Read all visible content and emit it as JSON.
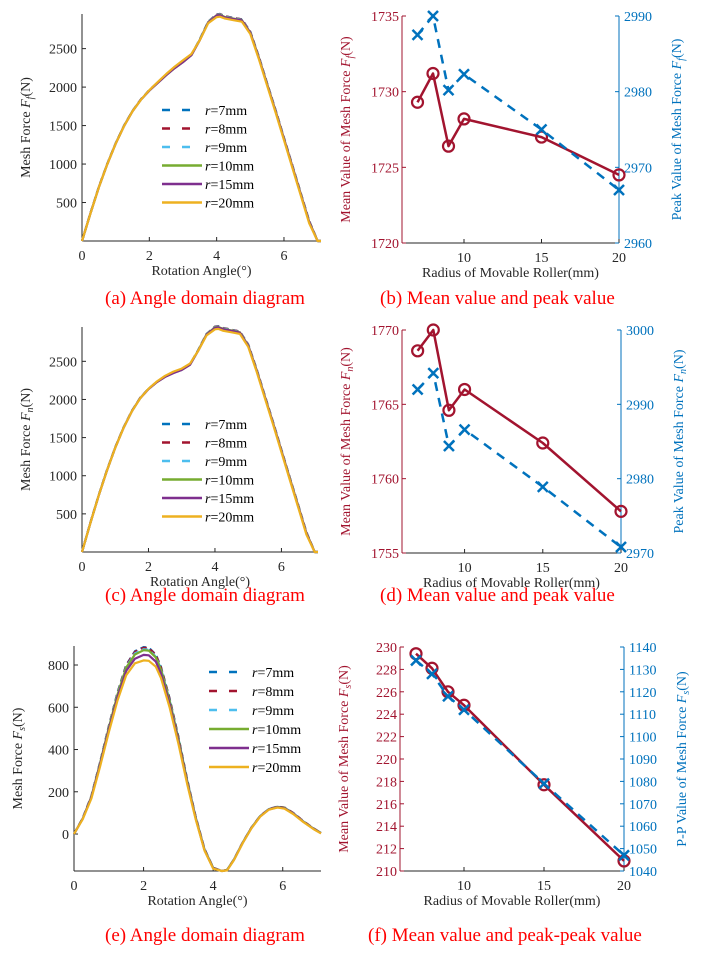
{
  "colors": {
    "r7": "#0072bd",
    "r8": "#a2142f",
    "r9": "#4dbeee",
    "r10": "#77ac30",
    "r15": "#7e2f8e",
    "r20": "#edb120",
    "mean": "#a2142f",
    "peak": "#0072bd",
    "caption": "#ff0000"
  },
  "legend": [
    {
      "key": "r7",
      "label": "r=7mm",
      "style": "dashed"
    },
    {
      "key": "r8",
      "label": "r=8mm",
      "style": "dashed"
    },
    {
      "key": "r9",
      "label": "r=9mm",
      "style": "dashed"
    },
    {
      "key": "r10",
      "label": "r=10mm",
      "style": "solid"
    },
    {
      "key": "r15",
      "label": "r=15mm",
      "style": "solid"
    },
    {
      "key": "r20",
      "label": "r=20mm",
      "style": "solid"
    }
  ],
  "captions": {
    "a": "(a) Angle domain diagram",
    "b": "(b) Mean value and peak value",
    "c": "(c) Angle domain diagram",
    "d": "(d) Mean value and peak value",
    "e": "(e) Angle domain diagram",
    "f": "(f) Mean value and peak-peak value"
  },
  "chart_data": [
    {
      "id": "a",
      "type": "line",
      "title": "",
      "xlabel": "Rotation Angle(°)",
      "ylabel": "Mesh Force F_f(N)",
      "xlim": [
        0,
        7.1
      ],
      "ylim": [
        0,
        2950
      ],
      "xticks": [
        0,
        2,
        4,
        6
      ],
      "yticks": [
        500,
        1000,
        1500,
        2000,
        2500
      ],
      "legend_position": "center",
      "x": [
        0,
        0.25,
        0.5,
        0.75,
        1.0,
        1.25,
        1.5,
        1.75,
        2.0,
        2.25,
        2.5,
        2.75,
        3.0,
        3.25,
        3.5,
        3.75,
        4.0,
        4.1,
        4.25,
        4.5,
        4.75,
        5.0,
        5.25,
        5.5,
        5.75,
        6.0,
        6.25,
        6.5,
        6.75,
        7.0,
        7.1
      ],
      "series": [
        {
          "name": "r=7mm",
          "key": "r7",
          "values": [
            0,
            360,
            700,
            1000,
            1270,
            1500,
            1690,
            1840,
            1960,
            2060,
            2160,
            2250,
            2330,
            2420,
            2620,
            2850,
            2945,
            2950,
            2920,
            2900,
            2880,
            2720,
            2400,
            2050,
            1700,
            1340,
            980,
            620,
            260,
            -40,
            -60
          ]
        },
        {
          "name": "r=8mm",
          "key": "r8",
          "values": [
            0,
            360,
            700,
            1000,
            1270,
            1500,
            1690,
            1840,
            1960,
            2060,
            2160,
            2250,
            2330,
            2420,
            2620,
            2850,
            2945,
            2950,
            2920,
            2900,
            2880,
            2720,
            2400,
            2050,
            1700,
            1340,
            980,
            620,
            260,
            -40,
            -60
          ]
        },
        {
          "name": "r=9mm",
          "key": "r9",
          "values": [
            0,
            358,
            698,
            998,
            1268,
            1498,
            1688,
            1838,
            1958,
            2058,
            2158,
            2248,
            2328,
            2418,
            2618,
            2848,
            2940,
            2945,
            2915,
            2895,
            2875,
            2715,
            2395,
            2045,
            1695,
            1335,
            975,
            615,
            255,
            -45,
            -60
          ]
        },
        {
          "name": "r=10mm",
          "key": "r10",
          "values": [
            0,
            358,
            698,
            998,
            1268,
            1498,
            1688,
            1838,
            1955,
            2055,
            2155,
            2245,
            2325,
            2415,
            2615,
            2845,
            2935,
            2940,
            2910,
            2890,
            2870,
            2710,
            2390,
            2040,
            1690,
            1330,
            970,
            610,
            250,
            -45,
            -60
          ]
        },
        {
          "name": "r=15mm",
          "key": "r15",
          "values": [
            0,
            356,
            696,
            996,
            1266,
            1496,
            1686,
            1836,
            1955,
            2055,
            2155,
            2245,
            2325,
            2415,
            2610,
            2840,
            2930,
            2935,
            2905,
            2885,
            2865,
            2705,
            2385,
            2035,
            1685,
            1325,
            965,
            605,
            245,
            -45,
            -60
          ]
        },
        {
          "name": "r=20mm",
          "key": "r20",
          "values": [
            0,
            355,
            695,
            995,
            1265,
            1495,
            1685,
            1835,
            1960,
            2065,
            2170,
            2265,
            2350,
            2430,
            2610,
            2830,
            2910,
            2915,
            2890,
            2870,
            2850,
            2690,
            2370,
            2020,
            1670,
            1310,
            950,
            590,
            230,
            -50,
            -60
          ]
        }
      ]
    },
    {
      "id": "b",
      "type": "line",
      "title": "",
      "xlabel": "Radius of Movable Roller(mm)",
      "ylabel_left": "Mean Value of Mesh Force F_f(N)",
      "ylabel_right": "Peak Value of Mesh Force F_f(N)",
      "xlim": [
        6,
        20
      ],
      "xticks": [
        10,
        15,
        20
      ],
      "ylim_left": [
        1720,
        1735
      ],
      "yticks_left": [
        1720,
        1725,
        1730,
        1735
      ],
      "ylim_right": [
        2960,
        2990
      ],
      "yticks_right": [
        2960,
        2970,
        2980,
        2990
      ],
      "x": [
        7,
        8,
        9,
        10,
        15,
        20
      ],
      "series": [
        {
          "name": "Mean value",
          "axis": "left",
          "marker": "o",
          "style": "solid",
          "key": "mean",
          "values": [
            1729.3,
            1731.2,
            1726.4,
            1728.2,
            1727.0,
            1724.5
          ]
        },
        {
          "name": "Peak value",
          "axis": "right",
          "marker": "x",
          "style": "dashed",
          "key": "peak",
          "values": [
            2987.5,
            2990.0,
            2980.2,
            2982.3,
            2975.0,
            2967.0
          ]
        }
      ]
    },
    {
      "id": "c",
      "type": "line",
      "title": "",
      "xlabel": "Rotation Angle(°)",
      "ylabel": "Mesh Force F_n(N)",
      "xlim": [
        0,
        7.1
      ],
      "ylim": [
        0,
        2950
      ],
      "xticks": [
        0,
        2,
        4,
        6
      ],
      "yticks": [
        500,
        1000,
        1500,
        2000,
        2500
      ],
      "legend_position": "center",
      "x": [
        0,
        0.25,
        0.5,
        0.75,
        1.0,
        1.25,
        1.5,
        1.75,
        2.0,
        2.25,
        2.5,
        2.75,
        3.0,
        3.25,
        3.5,
        3.75,
        4.0,
        4.1,
        4.25,
        4.5,
        4.75,
        5.0,
        5.25,
        5.5,
        5.75,
        6.0,
        6.25,
        6.5,
        6.75,
        7.0,
        7.1
      ],
      "series": [
        {
          "name": "r=7mm",
          "key": "r7",
          "values": [
            0,
            380,
            740,
            1070,
            1370,
            1630,
            1850,
            2020,
            2140,
            2230,
            2300,
            2350,
            2390,
            2460,
            2650,
            2860,
            2955,
            2960,
            2935,
            2915,
            2890,
            2720,
            2400,
            2050,
            1700,
            1340,
            980,
            620,
            260,
            -40,
            -60
          ]
        },
        {
          "name": "r=8mm",
          "key": "r8",
          "values": [
            0,
            380,
            740,
            1070,
            1370,
            1630,
            1850,
            2020,
            2140,
            2230,
            2300,
            2350,
            2390,
            2460,
            2650,
            2860,
            2955,
            2960,
            2935,
            2915,
            2890,
            2720,
            2400,
            2050,
            1700,
            1340,
            980,
            620,
            260,
            -40,
            -60
          ]
        },
        {
          "name": "r=9mm",
          "key": "r9",
          "values": [
            0,
            378,
            738,
            1068,
            1368,
            1628,
            1848,
            2018,
            2138,
            2228,
            2298,
            2348,
            2388,
            2458,
            2648,
            2858,
            2950,
            2955,
            2930,
            2910,
            2885,
            2715,
            2395,
            2045,
            1695,
            1335,
            975,
            615,
            255,
            -45,
            -60
          ]
        },
        {
          "name": "r=10mm",
          "key": "r10",
          "values": [
            0,
            378,
            738,
            1068,
            1368,
            1628,
            1848,
            2018,
            2138,
            2228,
            2298,
            2348,
            2388,
            2456,
            2645,
            2855,
            2945,
            2950,
            2925,
            2905,
            2880,
            2710,
            2390,
            2040,
            1690,
            1330,
            970,
            610,
            250,
            -45,
            -60
          ]
        },
        {
          "name": "r=15mm",
          "key": "r15",
          "values": [
            0,
            376,
            736,
            1066,
            1366,
            1626,
            1846,
            2016,
            2136,
            2226,
            2296,
            2346,
            2386,
            2454,
            2640,
            2850,
            2940,
            2945,
            2920,
            2900,
            2875,
            2705,
            2385,
            2035,
            1685,
            1325,
            965,
            605,
            245,
            -45,
            -60
          ]
        },
        {
          "name": "r=20mm",
          "key": "r20",
          "values": [
            0,
            375,
            735,
            1065,
            1365,
            1625,
            1845,
            2015,
            2140,
            2235,
            2310,
            2365,
            2405,
            2470,
            2640,
            2840,
            2920,
            2925,
            2900,
            2880,
            2860,
            2690,
            2370,
            2020,
            1670,
            1310,
            950,
            590,
            230,
            -50,
            -60
          ]
        }
      ]
    },
    {
      "id": "d",
      "type": "line",
      "title": "",
      "xlabel": "Radius of Movable Roller(mm)",
      "ylabel_left": "Mean Value of Mesh Force F_n(N)",
      "ylabel_right": "Peak Value of Mesh Force F_n(N)",
      "xlim": [
        6,
        20
      ],
      "xticks": [
        10,
        15,
        20
      ],
      "ylim_left": [
        1755,
        1770
      ],
      "yticks_left": [
        1755,
        1760,
        1765,
        1770
      ],
      "ylim_right": [
        2970,
        3000
      ],
      "yticks_right": [
        2970,
        2980,
        2990,
        3000
      ],
      "x": [
        7,
        8,
        9,
        10,
        15,
        20
      ],
      "series": [
        {
          "name": "Mean value",
          "axis": "left",
          "marker": "o",
          "style": "solid",
          "key": "mean",
          "values": [
            1768.6,
            1770.0,
            1764.6,
            1766.0,
            1762.4,
            1757.8
          ]
        },
        {
          "name": "Peak value",
          "axis": "right",
          "marker": "x",
          "style": "dashed",
          "key": "peak",
          "values": [
            2992.0,
            2994.2,
            2984.4,
            2986.6,
            2978.9,
            2970.8
          ]
        }
      ]
    },
    {
      "id": "e",
      "type": "line",
      "title": "",
      "xlabel": "Rotation Angle(°)",
      "ylabel": "Mesh Force F_s(N)",
      "xlim": [
        0,
        7.1
      ],
      "ylim": [
        -175,
        890
      ],
      "xticks": [
        0,
        2,
        4,
        6
      ],
      "yticks": [
        0,
        200,
        400,
        600,
        800
      ],
      "legend_position": "top-right",
      "x": [
        0,
        0.25,
        0.5,
        0.75,
        1.0,
        1.25,
        1.5,
        1.75,
        2.0,
        2.15,
        2.35,
        2.5,
        2.75,
        3.0,
        3.25,
        3.5,
        3.75,
        4.0,
        4.25,
        4.4,
        4.6,
        4.85,
        5.1,
        5.35,
        5.6,
        5.85,
        6.05,
        6.3,
        6.6,
        6.9,
        7.1
      ],
      "series": [
        {
          "name": "r=7mm",
          "key": "r7",
          "values": [
            0,
            75,
            180,
            340,
            510,
            670,
            800,
            865,
            885,
            882,
            850,
            790,
            640,
            460,
            260,
            80,
            -70,
            -160,
            -180,
            -170,
            -120,
            -40,
            30,
            85,
            118,
            130,
            125,
            100,
            60,
            25,
            5
          ]
        },
        {
          "name": "r=8mm",
          "key": "r8",
          "values": [
            0,
            75,
            180,
            340,
            510,
            668,
            798,
            862,
            882,
            880,
            848,
            788,
            638,
            458,
            258,
            78,
            -72,
            -160,
            -180,
            -170,
            -120,
            -40,
            30,
            85,
            118,
            130,
            125,
            100,
            60,
            25,
            5
          ]
        },
        {
          "name": "r=9mm",
          "key": "r9",
          "values": [
            0,
            74,
            178,
            338,
            506,
            664,
            792,
            855,
            875,
            872,
            840,
            782,
            632,
            453,
            255,
            77,
            -73,
            -160,
            -180,
            -170,
            -120,
            -40,
            30,
            85,
            118,
            129,
            124,
            99,
            59,
            24,
            5
          ]
        },
        {
          "name": "r=10mm",
          "key": "r10",
          "values": [
            0,
            73,
            177,
            336,
            503,
            660,
            788,
            850,
            870,
            868,
            836,
            778,
            628,
            450,
            252,
            75,
            -74,
            -161,
            -180,
            -170,
            -121,
            -41,
            29,
            84,
            117,
            128,
            123,
            98,
            58,
            24,
            5
          ]
        },
        {
          "name": "r=15mm",
          "key": "r15",
          "values": [
            0,
            72,
            174,
            330,
            495,
            648,
            772,
            830,
            848,
            846,
            816,
            760,
            614,
            440,
            246,
            72,
            -76,
            -162,
            -180,
            -171,
            -122,
            -42,
            28,
            83,
            116,
            127,
            122,
            97,
            57,
            23,
            4
          ]
        },
        {
          "name": "r=20mm",
          "key": "r20",
          "values": [
            0,
            70,
            168,
            320,
            482,
            632,
            752,
            808,
            822,
            820,
            792,
            738,
            598,
            428,
            238,
            68,
            -78,
            -164,
            -180,
            -172,
            -123,
            -43,
            27,
            82,
            115,
            125,
            120,
            95,
            56,
            22,
            3
          ]
        }
      ]
    },
    {
      "id": "f",
      "type": "line",
      "title": "",
      "xlabel": "Radius of Movable Roller(mm)",
      "ylabel_left": "Mean Value of Mesh Force F_s(N)",
      "ylabel_right": "P-P Value of Mesh Force F_s(N)",
      "xlim": [
        6,
        20
      ],
      "xticks": [
        10,
        15,
        20
      ],
      "ylim_left": [
        210,
        230
      ],
      "yticks_left": [
        210,
        212,
        214,
        216,
        218,
        220,
        222,
        224,
        226,
        228,
        230
      ],
      "ylim_right": [
        1040,
        1140
      ],
      "yticks_right": [
        1040,
        1050,
        1060,
        1070,
        1080,
        1090,
        1100,
        1110,
        1120,
        1130,
        1140
      ],
      "x": [
        7,
        8,
        9,
        10,
        15,
        20
      ],
      "series": [
        {
          "name": "Mean value",
          "axis": "left",
          "marker": "o",
          "style": "solid",
          "key": "mean",
          "values": [
            229.4,
            228.1,
            226.0,
            224.8,
            217.7,
            210.9
          ]
        },
        {
          "name": "P-P value",
          "axis": "right",
          "marker": "x",
          "style": "dashed",
          "key": "peak",
          "values": [
            1134.0,
            1128.0,
            1118.0,
            1112.0,
            1079.0,
            1047.0
          ]
        }
      ]
    }
  ]
}
